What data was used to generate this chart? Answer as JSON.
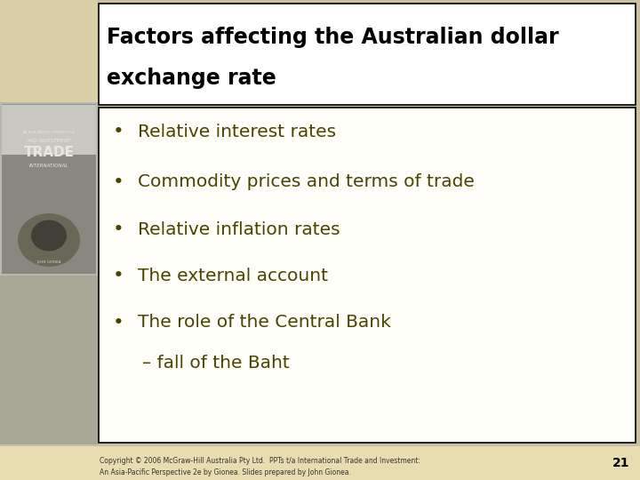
{
  "title_line1": "Factors affecting the Australian dollar",
  "title_line2": "exchange rate",
  "bullet_points": [
    "Relative interest rates",
    "Commodity prices and terms of trade",
    "Relative inflation rates",
    "The external account",
    "The role of the Central Bank"
  ],
  "sub_bullet": "– fall of the Baht",
  "title_bg": "#ffffff",
  "title_text_color": "#000000",
  "bullet_text_color": "#4a4400",
  "content_bg": "#fffef8",
  "border_color": "#000000",
  "footer_bg": "#e8ddb0",
  "footer_text": "Copyright © 2006 McGraw-Hill Australia Pty Ltd.  PPTs t/a International Trade and Investment:\nAn Asia-Pacific Perspective 2e by Gionea. Slides prepared by John Gionea.",
  "footer_page": "21",
  "slide_bg": "#c8c0a0",
  "left_top_bg": "#d8cfa0",
  "left_mid_bg": "#b0b0a8",
  "left_bot_bg": "#a0a090",
  "book_bg": "#c8c0a0",
  "title_font_size": 17,
  "bullet_font_size": 14.5
}
